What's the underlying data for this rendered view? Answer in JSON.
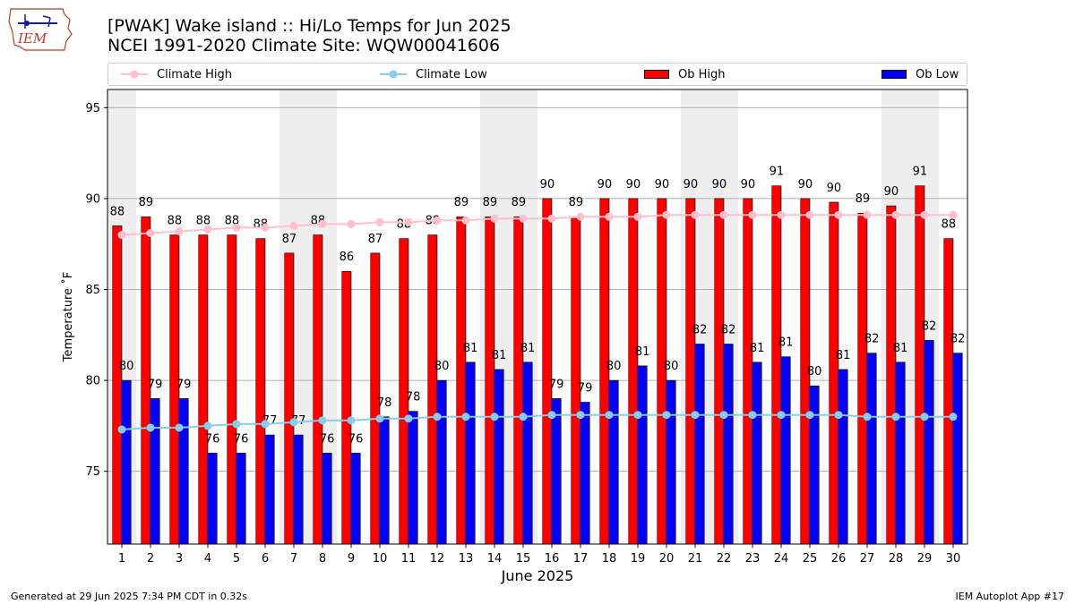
{
  "header": {
    "title_line1": "[PWAK] Wake island :: Hi/Lo Temps for Jun 2025",
    "title_line2": "NCEI 1991-2020 Climate Site: WQW00041606",
    "logo_text": "IEM"
  },
  "footer": {
    "generated": "Generated at 29 Jun 2025 7:34 PM CDT in 0.32s",
    "app": "IEM Autoplot App #17"
  },
  "colors": {
    "ob_high": "#ff0000",
    "ob_low": "#0000ff",
    "climate_high": "#ffc0cb",
    "climate_low": "#87ceeb",
    "weekend_shade": "#eeeeee"
  },
  "chart_data": {
    "type": "bar",
    "xlabel": "June 2025",
    "ylabel": "Temperature ˚F",
    "ylim": [
      71,
      96
    ],
    "yticks": [
      75,
      80,
      85,
      90,
      95
    ],
    "grid": true,
    "legend_position": "top",
    "categories": [
      1,
      2,
      3,
      4,
      5,
      6,
      7,
      8,
      9,
      10,
      11,
      12,
      13,
      14,
      15,
      16,
      17,
      18,
      19,
      20,
      21,
      22,
      23,
      24,
      25,
      26,
      27,
      28,
      29,
      30
    ],
    "shaded_days": [
      [
        1,
        1
      ],
      [
        7,
        8
      ],
      [
        14,
        15
      ],
      [
        21,
        22
      ],
      [
        28,
        29
      ]
    ],
    "series": [
      {
        "name": "Climate High",
        "kind": "line",
        "values": [
          88.0,
          88.1,
          88.2,
          88.3,
          88.4,
          88.4,
          88.5,
          88.6,
          88.6,
          88.7,
          88.7,
          88.8,
          88.8,
          88.9,
          88.9,
          88.9,
          89.0,
          89.0,
          89.0,
          89.1,
          89.1,
          89.1,
          89.1,
          89.1,
          89.1,
          89.1,
          89.1,
          89.1,
          89.1,
          89.1
        ]
      },
      {
        "name": "Climate Low",
        "kind": "line",
        "values": [
          77.3,
          77.4,
          77.4,
          77.5,
          77.6,
          77.6,
          77.7,
          77.8,
          77.8,
          77.9,
          77.9,
          78.0,
          78.0,
          78.0,
          78.0,
          78.1,
          78.1,
          78.1,
          78.1,
          78.1,
          78.1,
          78.1,
          78.1,
          78.1,
          78.1,
          78.1,
          78.0,
          78.0,
          78.0,
          78.0
        ]
      },
      {
        "name": "Ob High",
        "kind": "bar",
        "values": [
          88.5,
          89,
          88,
          88,
          88,
          87.8,
          87,
          88,
          86,
          87,
          87.8,
          88,
          89,
          89,
          89,
          90,
          89,
          90,
          90,
          90,
          90,
          90,
          90,
          90.7,
          90,
          89.8,
          89.2,
          89.6,
          90.7,
          87.8
        ],
        "labels": [
          "88",
          "89",
          "88",
          "88",
          "88",
          "88",
          "87",
          "88",
          "86",
          "87",
          "88",
          "88",
          "89",
          "89",
          "89",
          "90",
          "89",
          "90",
          "90",
          "90",
          "90",
          "90",
          "90",
          "91",
          "90",
          "90",
          "89",
          "90",
          "91",
          "88"
        ]
      },
      {
        "name": "Ob Low",
        "kind": "bar",
        "values": [
          80,
          79,
          79,
          76,
          76,
          77,
          77,
          76,
          76,
          78,
          78.3,
          80,
          81,
          80.6,
          81,
          79,
          78.8,
          80,
          80.8,
          80,
          82,
          82,
          81,
          81.3,
          79.7,
          80.6,
          81.5,
          81,
          82.2,
          81.5
        ],
        "labels": [
          "80",
          "79",
          "79",
          "76",
          "76",
          "77",
          "77",
          "76",
          "76",
          "78",
          "78",
          "80",
          "81",
          "81",
          "81",
          "79",
          "79",
          "80",
          "81",
          "80",
          "82",
          "82",
          "81",
          "81",
          "80",
          "81",
          "82",
          "81",
          "82",
          "82"
        ]
      }
    ]
  }
}
